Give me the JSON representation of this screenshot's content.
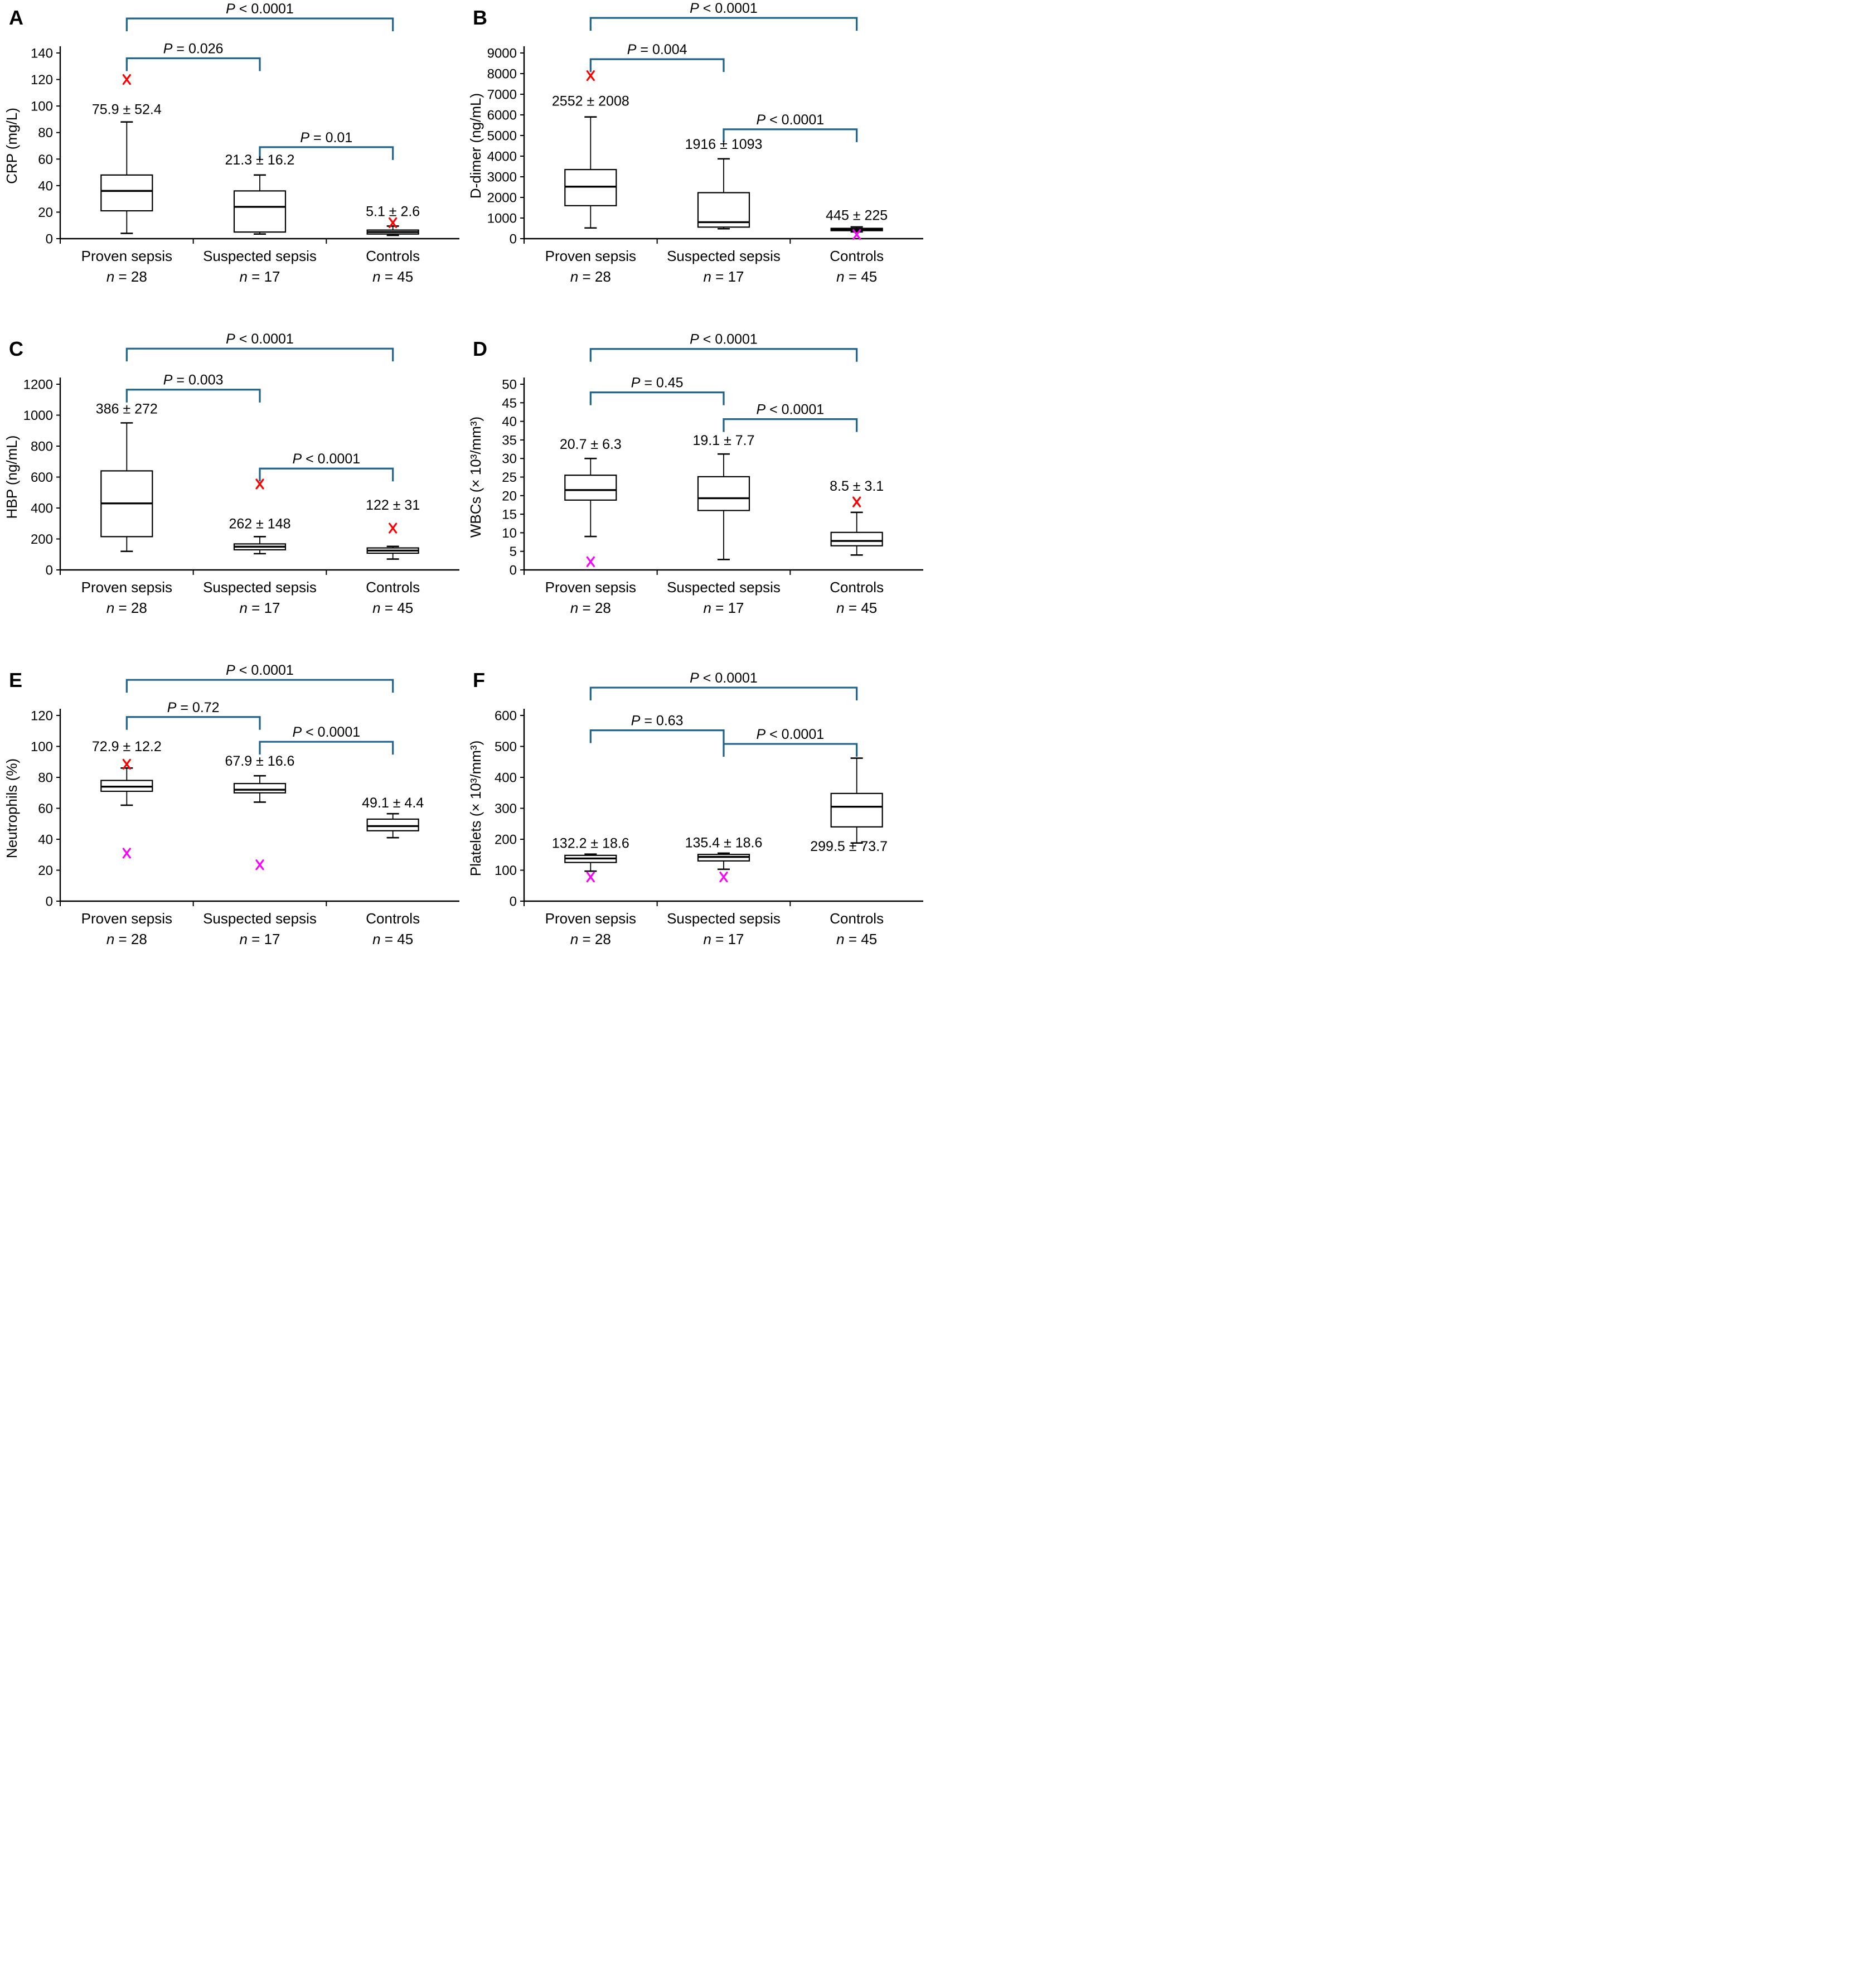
{
  "style": {
    "bracket_color": "#20648C",
    "box_color": "#000000",
    "outlier_colors": {
      "red": "#FF0000",
      "magenta": "#FF00FF"
    },
    "background": "#FFFFFF"
  },
  "chart_data": [
    {
      "type": "box",
      "panel_letter": "A",
      "ylabel": "CRP (mg/L)",
      "ymax": 140,
      "ystep": 20,
      "ylim": [
        0,
        140
      ],
      "categories": [
        "Proven sepsis",
        "Suspected sepsis",
        "Controls"
      ],
      "groups": [
        {
          "label": "Proven sepsis",
          "n_label": "n = 28",
          "mean_label": "75.9 ± 52.4",
          "label_y": 94,
          "q1": 21,
          "median": 36,
          "q3": 48,
          "whisker_low": 4,
          "whisker_high": 88,
          "outliers": [
            {
              "value": 120,
              "color": "red"
            }
          ]
        },
        {
          "label": "Suspected sepsis",
          "n_label": "n = 17",
          "mean_label": "21.3 ± 16.2",
          "label_y": 56,
          "q1": 5,
          "median": 24,
          "q3": 36,
          "whisker_low": 3.5,
          "whisker_high": 48,
          "outliers": []
        },
        {
          "label": "Controls",
          "n_label": "n = 45",
          "mean_label": "5.1 ± 2.6",
          "label_y": 17,
          "q1": 3.5,
          "median": 5,
          "q3": 6.5,
          "whisker_low": 2.5,
          "whisker_high": 9.5,
          "outliers": [
            {
              "value": 12,
              "color": "red"
            }
          ]
        }
      ],
      "brackets": [
        {
          "from": 0,
          "to": 2,
          "label": "P < 0.0001",
          "y": 166
        },
        {
          "from": 0,
          "to": 1,
          "label": "P = 0.026",
          "y": 136
        },
        {
          "from": 1,
          "to": 2,
          "label": "P = 0.01",
          "y": 69
        }
      ]
    },
    {
      "type": "box",
      "panel_letter": "B",
      "ylabel": "D-dimer (ng/mL)",
      "ymax": 9000,
      "ystep": 1000,
      "ylim": [
        0,
        9000
      ],
      "categories": [
        "Proven sepsis",
        "Suspected sepsis",
        "Controls"
      ],
      "groups": [
        {
          "label": "Proven sepsis",
          "n_label": "n = 28",
          "mean_label": "2552 ± 2008",
          "label_y": 6450,
          "q1": 1600,
          "median": 2520,
          "q3": 3350,
          "whisker_low": 520,
          "whisker_high": 5900,
          "outliers": [
            {
              "value": 7900,
              "color": "red"
            }
          ]
        },
        {
          "label": "Suspected sepsis",
          "n_label": "n = 17",
          "mean_label": "1916 ± 1093",
          "label_y": 4350,
          "q1": 560,
          "median": 800,
          "q3": 2230,
          "whisker_low": 480,
          "whisker_high": 3870,
          "outliers": []
        },
        {
          "label": "Controls",
          "n_label": "n = 45",
          "mean_label": "445 ± 225",
          "label_y": 900,
          "q1": 390,
          "median": 450,
          "q3": 500,
          "whisker_low": 330,
          "whisker_high": 570,
          "outliers": [
            {
              "value": 200,
              "color": "magenta"
            }
          ]
        }
      ],
      "brackets": [
        {
          "from": 0,
          "to": 2,
          "label": "P < 0.0001",
          "y": 10700
        },
        {
          "from": 0,
          "to": 1,
          "label": "P = 0.004",
          "y": 8700
        },
        {
          "from": 1,
          "to": 2,
          "label": "P < 0.0001",
          "y": 5300
        }
      ]
    },
    {
      "type": "box",
      "panel_letter": "C",
      "ylabel": "HBP (ng/mL)",
      "ymax": 1200,
      "ystep": 200,
      "ylim": [
        0,
        1200
      ],
      "categories": [
        "Proven sepsis",
        "Suspected sepsis",
        "Controls"
      ],
      "groups": [
        {
          "label": "Proven sepsis",
          "n_label": "n = 28",
          "mean_label": "386 ± 272",
          "label_y": 1010,
          "q1": 215,
          "median": 430,
          "q3": 640,
          "whisker_low": 120,
          "whisker_high": 950,
          "outliers": []
        },
        {
          "label": "Suspected sepsis",
          "n_label": "n = 17",
          "mean_label": "262 ± 148",
          "label_y": 268,
          "q1": 130,
          "median": 150,
          "q3": 168,
          "whisker_low": 105,
          "whisker_high": 215,
          "outliers": [
            {
              "value": 555,
              "color": "red"
            }
          ]
        },
        {
          "label": "Controls",
          "n_label": "n = 45",
          "mean_label": "122 ± 31",
          "label_y": 390,
          "q1": 108,
          "median": 125,
          "q3": 142,
          "whisker_low": 70,
          "whisker_high": 152,
          "outliers": [
            {
              "value": 270,
              "color": "red"
            }
          ]
        }
      ],
      "brackets": [
        {
          "from": 0,
          "to": 2,
          "label": "P < 0.0001",
          "y": 1430
        },
        {
          "from": 0,
          "to": 1,
          "label": "P = 0.003",
          "y": 1165
        },
        {
          "from": 1,
          "to": 2,
          "label": "P < 0.0001",
          "y": 655
        }
      ]
    },
    {
      "type": "box",
      "panel_letter": "D",
      "ylabel": "WBCs (× 10³/mm³)",
      "ymax": 50,
      "ystep": 5,
      "ylim": [
        0,
        50
      ],
      "categories": [
        "Proven sepsis",
        "Suspected sepsis",
        "Controls"
      ],
      "groups": [
        {
          "label": "Proven sepsis",
          "n_label": "n = 28",
          "mean_label": "20.7 ± 6.3",
          "label_y": 32.6,
          "q1": 18.8,
          "median": 21.5,
          "q3": 25.5,
          "whisker_low": 9,
          "whisker_high": 30,
          "outliers": [
            {
              "value": 2.2,
              "color": "magenta"
            }
          ]
        },
        {
          "label": "Suspected sepsis",
          "n_label": "n = 17",
          "mean_label": "19.1 ± 7.7",
          "label_y": 33.6,
          "q1": 16,
          "median": 19.3,
          "q3": 25.1,
          "whisker_low": 2.8,
          "whisker_high": 31.2,
          "outliers": []
        },
        {
          "label": "Controls",
          "n_label": "n = 45",
          "mean_label": "8.5 ± 3.1",
          "label_y": 21.3,
          "q1": 6.5,
          "median": 7.8,
          "q3": 10.1,
          "whisker_low": 4,
          "whisker_high": 15.5,
          "outliers": [
            {
              "value": 18.3,
              "color": "red"
            }
          ]
        }
      ],
      "brackets": [
        {
          "from": 0,
          "to": 2,
          "label": "P < 0.0001",
          "y": 59.5
        },
        {
          "from": 0,
          "to": 1,
          "label": "P = 0.45",
          "y": 47.8
        },
        {
          "from": 1,
          "to": 2,
          "label": "P < 0.0001",
          "y": 40.6
        }
      ]
    },
    {
      "type": "box",
      "panel_letter": "E",
      "ylabel": "Neutrophils (%)",
      "ymax": 120,
      "ystep": 20,
      "ylim": [
        0,
        120
      ],
      "categories": [
        "Proven sepsis",
        "Suspected sepsis",
        "Controls"
      ],
      "groups": [
        {
          "label": "Proven sepsis",
          "n_label": "n = 28",
          "mean_label": "72.9 ± 12.2",
          "label_y": 97,
          "q1": 71,
          "median": 74,
          "q3": 78,
          "whisker_low": 62,
          "whisker_high": 86,
          "outliers": [
            {
              "value": 88.5,
              "color": "red"
            },
            {
              "value": 31,
              "color": "magenta"
            }
          ]
        },
        {
          "label": "Suspected sepsis",
          "n_label": "n = 17",
          "mean_label": "67.9 ± 16.6",
          "label_y": 87.5,
          "q1": 70,
          "median": 72,
          "q3": 76,
          "whisker_low": 64,
          "whisker_high": 81,
          "outliers": [
            {
              "value": 23.5,
              "color": "magenta"
            }
          ]
        },
        {
          "label": "Controls",
          "n_label": "n = 45",
          "mean_label": "49.1 ± 4.4",
          "label_y": 60.5,
          "q1": 45.5,
          "median": 48.5,
          "q3": 53,
          "whisker_low": 41,
          "whisker_high": 56.5,
          "outliers": []
        }
      ],
      "brackets": [
        {
          "from": 0,
          "to": 2,
          "label": "P < 0.0001",
          "y": 143
        },
        {
          "from": 0,
          "to": 1,
          "label": "P = 0.72",
          "y": 119
        },
        {
          "from": 1,
          "to": 2,
          "label": "P < 0.0001",
          "y": 103
        }
      ]
    },
    {
      "type": "box",
      "panel_letter": "F",
      "ylabel": "Platelets (× 10³/mm³)",
      "ymax": 600,
      "ystep": 100,
      "ylim": [
        0,
        600
      ],
      "categories": [
        "Proven sepsis",
        "Suspected sepsis",
        "Controls"
      ],
      "groups": [
        {
          "label": "Proven sepsis",
          "n_label": "n = 28",
          "mean_label": "132.2 ± 18.6",
          "label_y": 172,
          "q1": 125,
          "median": 138,
          "q3": 148,
          "whisker_low": 97,
          "whisker_high": 152,
          "outliers": [
            {
              "value": 78,
              "color": "magenta"
            }
          ]
        },
        {
          "label": "Suspected sepsis",
          "n_label": "n = 17",
          "mean_label": "135.4 ± 18.6",
          "label_y": 174,
          "q1": 130,
          "median": 143,
          "q3": 151,
          "whisker_low": 103,
          "whisker_high": 155,
          "outliers": [
            {
              "value": 78,
              "color": "magenta"
            }
          ]
        },
        {
          "label": "Controls",
          "n_label": "n = 45",
          "mean_label": "299.5 ± 73.7",
          "label_y": 162,
          "label_dx": -14,
          "q1": 240,
          "median": 305,
          "q3": 348,
          "whisker_low": 188,
          "whisker_high": 462,
          "outliers": []
        }
      ],
      "brackets": [
        {
          "from": 0,
          "to": 2,
          "label": "P < 0.0001",
          "y": 690
        },
        {
          "from": 0,
          "to": 1,
          "label": "P = 0.63",
          "y": 552
        },
        {
          "from": 1,
          "to": 2,
          "label": "P < 0.0001",
          "y": 508
        }
      ]
    }
  ]
}
